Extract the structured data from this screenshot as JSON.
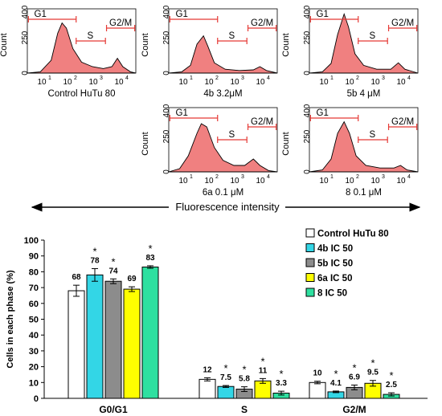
{
  "histograms": [
    {
      "caption": "Control HuTu 80",
      "y_axis_label": "Count",
      "y_ticks": [
        "0",
        "250",
        "400"
      ],
      "x_ticks": [
        "10",
        "10",
        "10",
        "10"
      ],
      "x_exponents": [
        "1",
        "2",
        "3",
        "4"
      ],
      "gate_labels": [
        "G1",
        "S",
        "G2/M"
      ],
      "fill_color": "#f08080"
    },
    {
      "caption": "4b  3.2μM",
      "y_axis_label": "Count",
      "y_ticks": [
        "0",
        "250",
        "400"
      ],
      "x_ticks": [
        "10",
        "10",
        "10",
        "10"
      ],
      "x_exponents": [
        "1",
        "2",
        "3",
        "4"
      ],
      "gate_labels": [
        "G1",
        "S",
        "G2/M"
      ],
      "fill_color": "#f08080"
    },
    {
      "caption": "5b  4 μM",
      "y_axis_label": "Count",
      "y_ticks": [
        "0",
        "250",
        "400"
      ],
      "x_ticks": [
        "10",
        "10",
        "10",
        "10"
      ],
      "x_exponents": [
        "1",
        "2",
        "3",
        "4"
      ],
      "gate_labels": [
        "G1",
        "S",
        "G2/M"
      ],
      "fill_color": "#f08080"
    },
    {
      "caption": "6a  0.1 μM",
      "y_axis_label": "Count",
      "y_ticks": [
        "0",
        "250",
        "400"
      ],
      "x_ticks": [
        "10",
        "10",
        "10",
        "10"
      ],
      "x_exponents": [
        "1",
        "2",
        "3",
        "4"
      ],
      "gate_labels": [
        "G1",
        "S",
        "G2/M"
      ],
      "fill_color": "#f08080"
    },
    {
      "caption": "8  0.1 μM",
      "y_axis_label": "Count",
      "y_ticks": [
        "0",
        "250",
        "400"
      ],
      "x_ticks": [
        "10",
        "10",
        "10",
        "10"
      ],
      "x_exponents": [
        "1",
        "2",
        "3",
        "4"
      ],
      "gate_labels": [
        "G1",
        "S",
        "G2/M"
      ],
      "fill_color": "#f08080"
    }
  ],
  "fluorescence_label": "Fluorescence intensity",
  "chart_data": {
    "type": "bar",
    "categories": [
      "G0/G1",
      "S",
      "G2/M"
    ],
    "ylabel": "Cells in each phase (%)",
    "xlabel": "",
    "ylim": [
      0,
      100
    ],
    "yticks": [
      0,
      10,
      20,
      30,
      40,
      50,
      60,
      70,
      80,
      90,
      100
    ],
    "grid": false,
    "legend_position": "top-right",
    "series": [
      {
        "name": "Control HuTu 80",
        "color": "#ffffff",
        "values": [
          68,
          12,
          10
        ],
        "labels": [
          "68",
          "12",
          "10"
        ],
        "errors": [
          3.5,
          1,
          0.8
        ],
        "significant": [
          false,
          false,
          false
        ]
      },
      {
        "name": "4b IC 50",
        "color": "#33d6e6",
        "values": [
          78,
          7.5,
          4.1
        ],
        "labels": [
          "78",
          "7.5",
          "4.1"
        ],
        "errors": [
          4,
          0.6,
          0.5
        ],
        "significant": [
          true,
          true,
          true
        ]
      },
      {
        "name": "5b IC 50",
        "color": "#8c8c8c",
        "values": [
          74,
          5.8,
          6.9
        ],
        "labels": [
          "74",
          "5.8",
          "6.9"
        ],
        "errors": [
          1.5,
          1.5,
          1.5
        ],
        "significant": [
          true,
          true,
          true
        ]
      },
      {
        "name": "6a IC 50",
        "color": "#ffff00",
        "values": [
          69,
          11,
          9.5
        ],
        "labels": [
          "69",
          "11",
          "9.5"
        ],
        "errors": [
          1.5,
          1.5,
          1.8
        ],
        "significant": [
          false,
          true,
          true
        ]
      },
      {
        "name": "8    IC 50",
        "color": "#2ee0a0",
        "values": [
          83,
          3.3,
          2.5
        ],
        "labels": [
          "83",
          "3.3",
          "2.5"
        ],
        "errors": [
          0.8,
          1.2,
          1.0
        ],
        "significant": [
          true,
          true,
          true
        ]
      }
    ],
    "significance_marker": "*"
  }
}
